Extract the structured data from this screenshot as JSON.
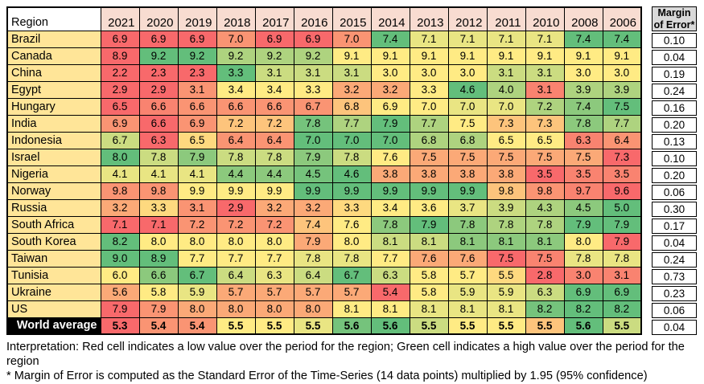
{
  "chart_data": {
    "type": "heatmap",
    "corner_label": "Region",
    "columns": [
      "2021",
      "2020",
      "2019",
      "2018",
      "2017",
      "2016",
      "2015",
      "2014",
      "2013",
      "2012",
      "2011",
      "2010",
      "2008",
      "2006"
    ],
    "margin_header_lines": [
      "Margin",
      "of Error*"
    ],
    "legend_note": "red = low value within row, green = high value within row",
    "color_scale": {
      "low": "#F8696B",
      "mid": "#FFEB84",
      "high": "#63BE7B"
    },
    "header_bg": "#F8DCD1",
    "region_bg": "#FFE598",
    "margin_header_bg": "#D9D9D9",
    "rows": [
      {
        "region": "Brazil",
        "values": [
          6.9,
          6.9,
          6.9,
          7.0,
          6.9,
          6.9,
          7.0,
          7.4,
          7.1,
          7.1,
          7.1,
          7.1,
          7.4,
          7.4
        ],
        "margin_of_error": 0.1,
        "cell_colors": [
          "#F8696B",
          "#F8696B",
          "#F8696B",
          "#FA9473",
          "#F8696B",
          "#F8696B",
          "#FA9473",
          "#63BE7B",
          "#E9E583",
          "#E9E583",
          "#E9E583",
          "#E9E583",
          "#63BE7B",
          "#63BE7B"
        ]
      },
      {
        "region": "Canada",
        "values": [
          8.9,
          9.2,
          9.2,
          9.2,
          9.2,
          9.2,
          9.1,
          9.1,
          9.1,
          9.1,
          9.1,
          9.1,
          9.1,
          9.1
        ],
        "margin_of_error": 0.04,
        "cell_colors": [
          "#F8696B",
          "#63BE7B",
          "#63BE7B",
          "#AED37F",
          "#AED37F",
          "#AED37F",
          "#FFEB84",
          "#FFEB84",
          "#FFEB84",
          "#FFEB84",
          "#FFEB84",
          "#FFEB84",
          "#FFEB84",
          "#FFEB84"
        ]
      },
      {
        "region": "China",
        "values": [
          2.2,
          2.3,
          2.3,
          3.3,
          3.1,
          3.1,
          3.1,
          3.0,
          3.0,
          3.0,
          3.1,
          3.1,
          3.0,
          3.0
        ],
        "margin_of_error": 0.19,
        "cell_colors": [
          "#F8696B",
          "#F8696B",
          "#F8696B",
          "#63BE7B",
          "#CBDC81",
          "#CBDC81",
          "#CBDC81",
          "#FFEB84",
          "#FFEB84",
          "#FFEB84",
          "#CBDC81",
          "#CBDC81",
          "#FFEB84",
          "#FFEB84"
        ]
      },
      {
        "region": "Egypt",
        "values": [
          2.9,
          2.9,
          3.1,
          3.4,
          3.4,
          3.3,
          3.2,
          3.2,
          3.3,
          4.6,
          4.0,
          3.1,
          3.9,
          3.9
        ],
        "margin_of_error": 0.24,
        "cell_colors": [
          "#F8696B",
          "#F8696B",
          "#FA9473",
          "#FFEB84",
          "#FFEB84",
          "#FFEB84",
          "#FBA977",
          "#FBA977",
          "#FFEB84",
          "#63BE7B",
          "#AED37F",
          "#F98370",
          "#AED37F",
          "#AED37F"
        ]
      },
      {
        "region": "Hungary",
        "values": [
          6.5,
          6.6,
          6.6,
          6.6,
          6.6,
          6.7,
          6.8,
          6.9,
          7.0,
          7.0,
          7.0,
          7.2,
          7.4,
          7.5
        ],
        "margin_of_error": 0.16,
        "cell_colors": [
          "#F8696B",
          "#F98370",
          "#FA9473",
          "#FA9473",
          "#FA9473",
          "#FA9473",
          "#FDC47C",
          "#FFEB84",
          "#FFEB84",
          "#E9E583",
          "#E9E583",
          "#AED37F",
          "#8CC97D",
          "#63BE7B"
        ]
      },
      {
        "region": "India",
        "values": [
          6.9,
          6.6,
          6.9,
          7.2,
          7.2,
          7.8,
          7.7,
          7.9,
          7.7,
          7.5,
          7.3,
          7.3,
          7.8,
          7.7
        ],
        "margin_of_error": 0.2,
        "cell_colors": [
          "#FA9473",
          "#F8696B",
          "#FA9473",
          "#FDC47C",
          "#FDC47C",
          "#75C37C",
          "#AED37F",
          "#63BE7B",
          "#AED37F",
          "#FFEB84",
          "#FDC47C",
          "#FDC47C",
          "#8CC97D",
          "#AED37F"
        ]
      },
      {
        "region": "Indonesia",
        "values": [
          6.7,
          6.3,
          6.5,
          6.4,
          6.4,
          7.0,
          7.0,
          7.0,
          6.8,
          6.8,
          6.5,
          6.5,
          6.3,
          6.4
        ],
        "margin_of_error": 0.13,
        "cell_colors": [
          "#CBDC81",
          "#F8696B",
          "#FED97F",
          "#FA9473",
          "#FA9473",
          "#63BE7B",
          "#63BE7B",
          "#63BE7B",
          "#AED37F",
          "#AED37F",
          "#FFEB84",
          "#FFEB84",
          "#F98370",
          "#FA9473"
        ]
      },
      {
        "region": "Israel",
        "values": [
          8.0,
          7.8,
          7.9,
          7.8,
          7.8,
          7.9,
          7.8,
          7.6,
          7.5,
          7.5,
          7.5,
          7.5,
          7.5,
          7.3
        ],
        "margin_of_error": 0.1,
        "cell_colors": [
          "#63BE7B",
          "#CBDC81",
          "#8CC97D",
          "#CBDC81",
          "#CBDC81",
          "#8CC97D",
          "#CBDC81",
          "#FFEB84",
          "#FBA977",
          "#FBA977",
          "#FBA977",
          "#FBA977",
          "#FBA977",
          "#F8696B"
        ]
      },
      {
        "region": "Nigeria",
        "values": [
          4.1,
          4.1,
          4.1,
          4.4,
          4.4,
          4.5,
          4.6,
          3.8,
          3.8,
          3.8,
          3.8,
          3.5,
          3.5,
          3.5
        ],
        "margin_of_error": 0.2,
        "cell_colors": [
          "#E9E583",
          "#E9E583",
          "#E9E583",
          "#8CC97D",
          "#8CC97D",
          "#75C37C",
          "#63BE7B",
          "#FBA977",
          "#FBA977",
          "#FBA977",
          "#FBA977",
          "#F8696B",
          "#F98370",
          "#F98370"
        ]
      },
      {
        "region": "Norway",
        "values": [
          9.8,
          9.8,
          9.9,
          9.9,
          9.9,
          9.9,
          9.9,
          9.9,
          9.9,
          9.9,
          9.8,
          9.8,
          9.7,
          9.6
        ],
        "margin_of_error": 0.06,
        "cell_colors": [
          "#FA9473",
          "#FA9473",
          "#FFEB84",
          "#FFEB84",
          "#FFEB84",
          "#63BE7B",
          "#63BE7B",
          "#63BE7B",
          "#63BE7B",
          "#63BE7B",
          "#FDC47C",
          "#FA9473",
          "#F98370",
          "#F8696B"
        ]
      },
      {
        "region": "Russia",
        "values": [
          3.2,
          3.3,
          3.1,
          2.9,
          3.2,
          3.2,
          3.3,
          3.4,
          3.6,
          3.7,
          3.9,
          4.3,
          4.5,
          5.0
        ],
        "margin_of_error": 0.3,
        "cell_colors": [
          "#FBA977",
          "#FED97F",
          "#FA9473",
          "#F8696B",
          "#FBA977",
          "#FBA977",
          "#FED97F",
          "#FFEB84",
          "#FFEB84",
          "#E9E583",
          "#CBDC81",
          "#AED37F",
          "#8CC97D",
          "#63BE7B"
        ]
      },
      {
        "region": "South Africa",
        "values": [
          7.1,
          7.1,
          7.2,
          7.2,
          7.2,
          7.4,
          7.6,
          7.8,
          7.9,
          7.8,
          7.8,
          7.8,
          7.9,
          7.9
        ],
        "margin_of_error": 0.17,
        "cell_colors": [
          "#F8696B",
          "#F8696B",
          "#FA9473",
          "#FA9473",
          "#FA9473",
          "#FDC47C",
          "#FFEB84",
          "#8CC97D",
          "#63BE7B",
          "#8CC97D",
          "#AED37F",
          "#AED37F",
          "#63BE7B",
          "#63BE7B"
        ]
      },
      {
        "region": "South Korea",
        "values": [
          8.2,
          8.0,
          8.0,
          8.0,
          8.0,
          7.9,
          8.0,
          8.1,
          8.1,
          8.1,
          8.1,
          8.1,
          8.0,
          7.9
        ],
        "margin_of_error": 0.04,
        "cell_colors": [
          "#63BE7B",
          "#FFEB84",
          "#FFEB84",
          "#FFEB84",
          "#FFEB84",
          "#FBA977",
          "#FFEB84",
          "#CBDC81",
          "#CBDC81",
          "#8CC97D",
          "#8CC97D",
          "#8CC97D",
          "#FFEB84",
          "#F8696B"
        ]
      },
      {
        "region": "Taiwan",
        "values": [
          9.0,
          8.9,
          7.7,
          7.7,
          7.7,
          7.8,
          7.8,
          7.7,
          7.6,
          7.6,
          7.5,
          7.5,
          7.8,
          7.8
        ],
        "margin_of_error": 0.24,
        "cell_colors": [
          "#63BE7B",
          "#63BE7B",
          "#FFEB84",
          "#FFEB84",
          "#FFEB84",
          "#E9E583",
          "#E9E583",
          "#FFEB84",
          "#FBA977",
          "#FBA977",
          "#F8696B",
          "#F98370",
          "#E9E583",
          "#E9E583"
        ]
      },
      {
        "region": "Tunisia",
        "values": [
          6.0,
          6.6,
          6.7,
          6.4,
          6.3,
          6.4,
          6.7,
          6.3,
          5.8,
          5.7,
          5.5,
          2.8,
          3.0,
          3.1
        ],
        "margin_of_error": 0.73,
        "cell_colors": [
          "#FFEB84",
          "#8CC97D",
          "#63BE7B",
          "#CBDC81",
          "#E9E583",
          "#CBDC81",
          "#63BE7B",
          "#CBDC81",
          "#FFEB84",
          "#FFEB84",
          "#FED97F",
          "#F8696B",
          "#F98370",
          "#F98370"
        ]
      },
      {
        "region": "Ukraine",
        "values": [
          5.6,
          5.8,
          5.9,
          5.7,
          5.7,
          5.7,
          5.7,
          5.4,
          5.8,
          5.9,
          5.9,
          6.3,
          6.9,
          6.9
        ],
        "margin_of_error": 0.23,
        "cell_colors": [
          "#FBA977",
          "#FFEB84",
          "#E9E583",
          "#FBA977",
          "#FBA977",
          "#FBA977",
          "#FBA977",
          "#F8696B",
          "#FFEB84",
          "#E9E583",
          "#E9E583",
          "#CBDC81",
          "#63BE7B",
          "#63BE7B"
        ]
      },
      {
        "region": "US",
        "values": [
          7.9,
          7.9,
          8.0,
          8.0,
          8.0,
          8.0,
          8.1,
          8.1,
          8.1,
          8.1,
          8.1,
          8.2,
          8.2,
          8.2
        ],
        "margin_of_error": 0.06,
        "cell_colors": [
          "#F8696B",
          "#FA9473",
          "#FBA977",
          "#FBA977",
          "#FBA977",
          "#FBA977",
          "#FFEB84",
          "#FFEB84",
          "#E9E583",
          "#E9E583",
          "#E9E583",
          "#75C37C",
          "#63BE7B",
          "#63BE7B"
        ]
      },
      {
        "region": "World average",
        "is_world_average": true,
        "values": [
          5.3,
          5.4,
          5.4,
          5.5,
          5.5,
          5.5,
          5.6,
          5.6,
          5.5,
          5.5,
          5.5,
          5.5,
          5.6,
          5.5
        ],
        "margin_of_error": 0.04,
        "cell_colors": [
          "#F8696B",
          "#FA9473",
          "#FA9473",
          "#FFEB84",
          "#FFEB84",
          "#E9E583",
          "#75C37C",
          "#63BE7B",
          "#CBDC81",
          "#FFEB84",
          "#FFEB84",
          "#FDC47C",
          "#63BE7B",
          "#CBDC81"
        ]
      }
    ]
  },
  "footnotes": {
    "interpretation": "Interpretation: Red cell indicates a low value over the period for the region; Green cell indicates a high value over the period for the region",
    "margin_note": "* Margin of Error is computed as the Standard Error of the Time-Series (14 data points) multiplied by 1.95 (95% confidence)"
  }
}
